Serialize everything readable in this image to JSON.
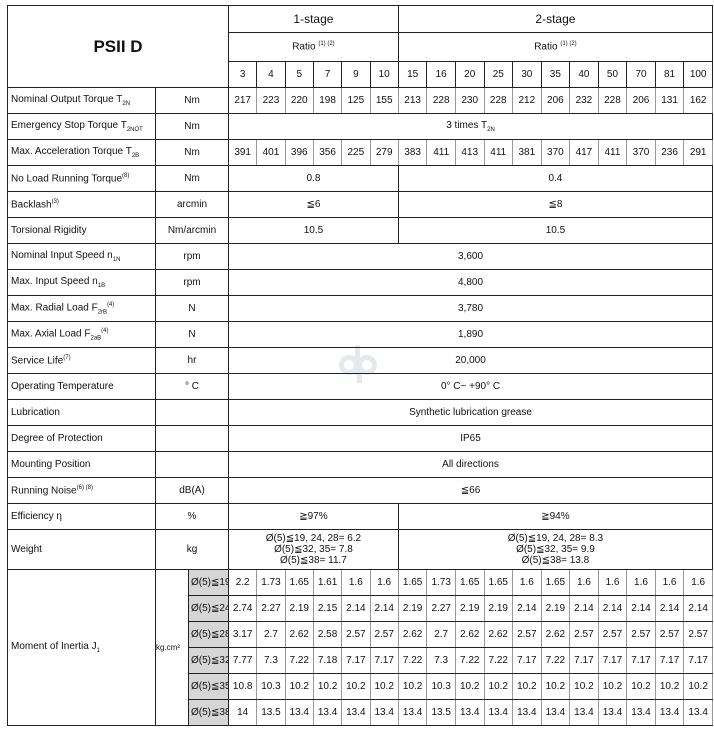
{
  "title": "PSII D",
  "stages": [
    "1-stage",
    "2-stage"
  ],
  "ratio_label": "Ratio",
  "ratio_sup": "(1) (2)",
  "ratios": [
    "3",
    "4",
    "5",
    "7",
    "9",
    "10",
    "15",
    "16",
    "20",
    "25",
    "30",
    "35",
    "40",
    "50",
    "70",
    "81",
    "100"
  ],
  "rows": [
    {
      "label": "Nominal Output Torque T",
      "sub": "2N",
      "unit": "Nm",
      "values": [
        "217",
        "223",
        "220",
        "198",
        "125",
        "155",
        "213",
        "228",
        "230",
        "228",
        "212",
        "206",
        "232",
        "228",
        "206",
        "131",
        "162"
      ]
    },
    {
      "label": "Emergency Stop Torque T",
      "sub": "2NOT",
      "unit": "Nm",
      "all": "3 times T",
      "all_sub": "2N"
    },
    {
      "label": "Max. Acceleration Torque T",
      "sub": "2B",
      "unit": "Nm",
      "values": [
        "391",
        "401",
        "396",
        "356",
        "225",
        "279",
        "383",
        "411",
        "413",
        "411",
        "381",
        "370",
        "417",
        "411",
        "370",
        "236",
        "291"
      ]
    },
    {
      "label": "No Load Running Torque",
      "sup": "(8)",
      "unit": "Nm",
      "stage1": "0.8",
      "stage2": "0.4"
    },
    {
      "label": "Backlash",
      "sup": "(3)",
      "unit": "arcmin",
      "stage1": "≦6",
      "stage2": "≦8"
    },
    {
      "label": "Torsional Rigidity",
      "unit": "Nm/arcmin",
      "stage1": "10.5",
      "stage2": "10.5"
    },
    {
      "label": "Nominal Input Speed n",
      "sub": "1N",
      "unit": "rpm",
      "all": "3,600"
    },
    {
      "label": "Max. Input Speed n",
      "sub": "1B",
      "unit": "rpm",
      "all": "4,800"
    },
    {
      "label": "Max. Radial Load F",
      "sub": "2rB",
      "sup": "(4)",
      "unit": "N",
      "all": "3,780"
    },
    {
      "label": "Max. Axial Load F",
      "sub": "2aB",
      "sup": "(4)",
      "unit": "N",
      "all": "1,890"
    },
    {
      "label": "Service Life",
      "sup": "(7)",
      "unit": "hr",
      "all": "20,000"
    },
    {
      "label": "Operating Temperature",
      "unit": "° C",
      "all": "0° C~ +90° C"
    },
    {
      "label": "Lubrication",
      "unit": "",
      "all": "Synthetic lubrication grease"
    },
    {
      "label": "Degree of  Protection",
      "unit": "",
      "all": "IP65"
    },
    {
      "label": "Mounting Position",
      "unit": "",
      "all": "All directions"
    },
    {
      "label": "Running Noise",
      "sup": "(6) (8)",
      "unit": "dB(A)",
      "all": "≦66"
    },
    {
      "label": "Efficiency η",
      "unit": "%",
      "stage1": "≧97%",
      "stage2": "≧94%"
    }
  ],
  "weight": {
    "label": "Weight",
    "unit": "kg",
    "stage1": [
      "Ø(5)≦19, 24, 28= 6.2",
      "Ø(5)≦32, 35= 7.8",
      "Ø(5)≦38= 11.7"
    ],
    "stage2": [
      "Ø(5)≦19, 24, 28= 8.3",
      "Ø(5)≦32, 35= 9.9",
      "Ø(5)≦38= 13.8"
    ]
  },
  "inertia": {
    "label": "Moment of Inertia  J",
    "label_sub": "1",
    "unit": "kg.cm²",
    "rows": [
      {
        "dia": "Ø(5)≦19",
        "values": [
          "2.2",
          "1.73",
          "1.65",
          "1.61",
          "1.6",
          "1.6",
          "1.65",
          "1.73",
          "1.65",
          "1.65",
          "1.6",
          "1.65",
          "1.6",
          "1.6",
          "1.6",
          "1.6",
          "1.6"
        ]
      },
      {
        "dia": "Ø(5)≦24",
        "values": [
          "2.74",
          "2.27",
          "2.19",
          "2.15",
          "2.14",
          "2.14",
          "2.19",
          "2.27",
          "2.19",
          "2.19",
          "2.14",
          "2.19",
          "2.14",
          "2.14",
          "2.14",
          "2.14",
          "2.14"
        ]
      },
      {
        "dia": "Ø(5)≦28",
        "values": [
          "3.17",
          "2.7",
          "2.62",
          "2.58",
          "2.57",
          "2.57",
          "2.62",
          "2.7",
          "2.62",
          "2.62",
          "2.57",
          "2.62",
          "2.57",
          "2.57",
          "2.57",
          "2.57",
          "2.57"
        ]
      },
      {
        "dia": "Ø(5)≦32",
        "values": [
          "7.77",
          "7.3",
          "7.22",
          "7.18",
          "7.17",
          "7.17",
          "7.22",
          "7.3",
          "7.22",
          "7.22",
          "7.17",
          "7.22",
          "7.17",
          "7.17",
          "7.17",
          "7.17",
          "7.17"
        ]
      },
      {
        "dia": "Ø(5)≦35",
        "values": [
          "10.8",
          "10.3",
          "10.2",
          "10.2",
          "10.2",
          "10.2",
          "10.2",
          "10.3",
          "10.2",
          "10.2",
          "10.2",
          "10.2",
          "10.2",
          "10.2",
          "10.2",
          "10.2",
          "10.2"
        ]
      },
      {
        "dia": "Ø(5)≦38",
        "values": [
          "14",
          "13.5",
          "13.4",
          "13.4",
          "13.4",
          "13.4",
          "13.4",
          "13.5",
          "13.4",
          "13.4",
          "13.4",
          "13.4",
          "13.4",
          "13.4",
          "13.4",
          "13.4",
          "13.4"
        ]
      }
    ]
  },
  "watermark": "dp"
}
